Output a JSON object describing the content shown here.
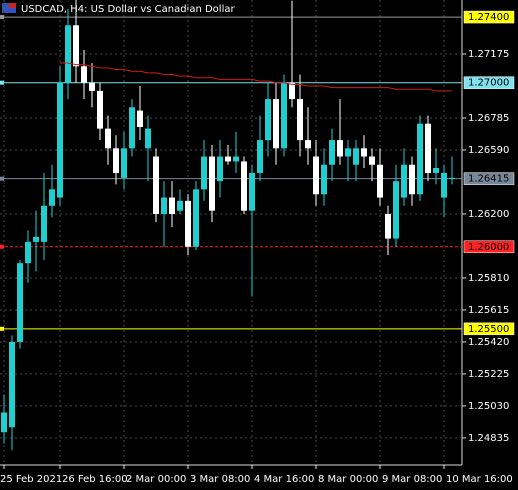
{
  "chart_data": {
    "type": "candlestick",
    "title": "USDCAD, H4:  US Dollar vs Canadian Dollar",
    "categories": [
      "25 Feb 2021",
      null,
      null,
      null,
      null,
      null,
      null,
      "26 Feb 16:00",
      null,
      null,
      null,
      null,
      null,
      null,
      null,
      "2 Mar 00:00",
      null,
      null,
      null,
      null,
      null,
      null,
      null,
      "3 Mar 08:00",
      null,
      null,
      null,
      null,
      null,
      null,
      null,
      "4 Mar 16:00",
      null,
      null,
      null,
      null,
      null,
      null,
      null,
      "8 Mar 00:00",
      null,
      null,
      null,
      null,
      null,
      null,
      null,
      "9 Mar 08:00",
      null,
      null,
      null,
      null,
      null,
      null,
      null,
      "10 Mar 16:00",
      null
    ],
    "open": [
      1.2487,
      1.249,
      1.2542,
      1.259,
      1.2603,
      1.2603,
      1.2625,
      1.263,
      1.27,
      1.2735,
      1.271,
      1.27,
      1.2695,
      1.2672,
      1.266,
      1.2642,
      1.266,
      1.2683,
      1.266,
      1.2655,
      1.262,
      1.263,
      1.2622,
      1.2628,
      1.26,
      1.2635,
      1.2655,
      1.264,
      1.2655,
      1.2652,
      1.2652,
      1.2622,
      1.2645,
      1.2665,
      1.269,
      1.266,
      1.27,
      1.269,
      1.2665,
      1.2655,
      1.2632,
      1.265,
      1.2665,
      1.2655,
      1.265,
      1.266,
      1.2655,
      1.265,
      1.262,
      1.2605,
      1.263,
      1.265,
      1.2632,
      1.2675,
      1.2645,
      1.263,
      1.2642
    ],
    "high": [
      1.251,
      1.2546,
      1.2592,
      1.261,
      1.2622,
      1.2645,
      1.265,
      1.271,
      1.2745,
      1.276,
      1.272,
      1.2712,
      1.27,
      1.268,
      1.2668,
      1.267,
      1.269,
      1.2698,
      1.268,
      1.266,
      1.264,
      1.264,
      1.2635,
      1.2632,
      1.264,
      1.2665,
      1.2662,
      1.2665,
      1.2662,
      1.267,
      1.2655,
      1.265,
      1.268,
      1.27,
      1.27,
      1.2705,
      1.275,
      1.2705,
      1.2685,
      1.2665,
      1.266,
      1.2672,
      1.269,
      1.2665,
      1.2665,
      1.2668,
      1.266,
      1.266,
      1.2625,
      1.265,
      1.266,
      1.2655,
      1.268,
      1.268,
      1.266,
      1.265,
      1.2655
    ],
    "low": [
      1.248,
      1.2476,
      1.2538,
      1.2578,
      1.2585,
      1.2592,
      1.2618,
      1.2625,
      1.269,
      1.27,
      1.269,
      1.2685,
      1.2665,
      1.265,
      1.2638,
      1.2635,
      1.2655,
      1.2665,
      1.264,
      1.2615,
      1.26,
      1.2612,
      1.262,
      1.2595,
      1.2598,
      1.2628,
      1.2615,
      1.263,
      1.265,
      1.2645,
      1.262,
      1.257,
      1.264,
      1.2655,
      1.265,
      1.2655,
      1.2685,
      1.2655,
      1.265,
      1.2625,
      1.2625,
      1.264,
      1.265,
      1.264,
      1.264,
      1.2648,
      1.264,
      1.2625,
      1.2595,
      1.26,
      1.2625,
      1.2625,
      1.2628,
      1.264,
      1.2638,
      1.2618,
      1.2638
    ],
    "close": [
      1.2499,
      1.2542,
      1.259,
      1.2603,
      1.2606,
      1.2625,
      1.2635,
      1.27,
      1.2735,
      1.271,
      1.27,
      1.2695,
      1.2672,
      1.266,
      1.2645,
      1.266,
      1.2685,
      1.2673,
      1.2672,
      1.262,
      1.263,
      1.262,
      1.2628,
      1.26,
      1.2635,
      1.2655,
      1.2622,
      1.2655,
      1.2652,
      1.2655,
      1.2622,
      1.2645,
      1.2665,
      1.269,
      1.266,
      1.27,
      1.269,
      1.2665,
      1.266,
      1.2632,
      1.265,
      1.2665,
      1.2655,
      1.266,
      1.266,
      1.2655,
      1.265,
      1.263,
      1.2605,
      1.264,
      1.265,
      1.2632,
      1.2675,
      1.2645,
      1.2648,
      1.2645,
      1.2642
    ],
    "up_color": "#20d0d0",
    "down_color": "#ffffff",
    "moving_average": {
      "color": "#d01c1c",
      "values": [
        null,
        null,
        null,
        null,
        null,
        null,
        null,
        1.2712,
        1.2712,
        1.2711,
        1.2711,
        1.271,
        1.2709,
        1.2709,
        1.2708,
        1.2708,
        1.2707,
        1.2707,
        1.2706,
        1.2706,
        1.2705,
        1.2705,
        1.2704,
        1.2704,
        1.2703,
        1.2703,
        1.2703,
        1.2702,
        1.2702,
        1.2702,
        1.2702,
        1.2702,
        1.2701,
        1.2701,
        1.27,
        1.27,
        1.2699,
        1.2699,
        1.2698,
        1.2698,
        1.2698,
        1.2697,
        1.2697,
        1.2697,
        1.2697,
        1.2697,
        1.2697,
        1.2697,
        1.2697,
        1.2696,
        1.2696,
        1.2696,
        1.2696,
        1.2696,
        1.2695,
        1.2695,
        1.2695
      ]
    },
    "ylim": [
      1.2467,
      1.27504
    ],
    "yticks": [
      {
        "value": 1.27175,
        "label": "1.27175"
      },
      {
        "value": 1.26785,
        "label": "1.26785"
      },
      {
        "value": 1.2659,
        "label": "1.26590"
      },
      {
        "value": 1.262,
        "label": "1.26200"
      },
      {
        "value": 1.2581,
        "label": "1.25810"
      },
      {
        "value": 1.25615,
        "label": "1.25615"
      },
      {
        "value": 1.2542,
        "label": "1.25420"
      },
      {
        "value": 1.25225,
        "label": "1.25225"
      },
      {
        "value": 1.2503,
        "label": "1.25030"
      },
      {
        "value": 1.24835,
        "label": "1.24835"
      }
    ],
    "levels": [
      {
        "value": 1.274,
        "label": "1.27400",
        "color": "#ffff00",
        "line_color": "#9a9a9a"
      },
      {
        "value": 1.27,
        "label": "1.27000",
        "color": "#7fe3ef",
        "line_color": "#7fe3ef"
      },
      {
        "value": 1.26415,
        "label": "1.26415",
        "color": "#778899",
        "line_color": "#778899"
      },
      {
        "value": 1.26,
        "label": "1.26000",
        "color": "#ff2020",
        "line_color": "#ff2020"
      },
      {
        "value": 1.255,
        "label": "1.25500",
        "color": "#ffff00",
        "line_color": "#ffff00"
      }
    ],
    "grid": true
  }
}
